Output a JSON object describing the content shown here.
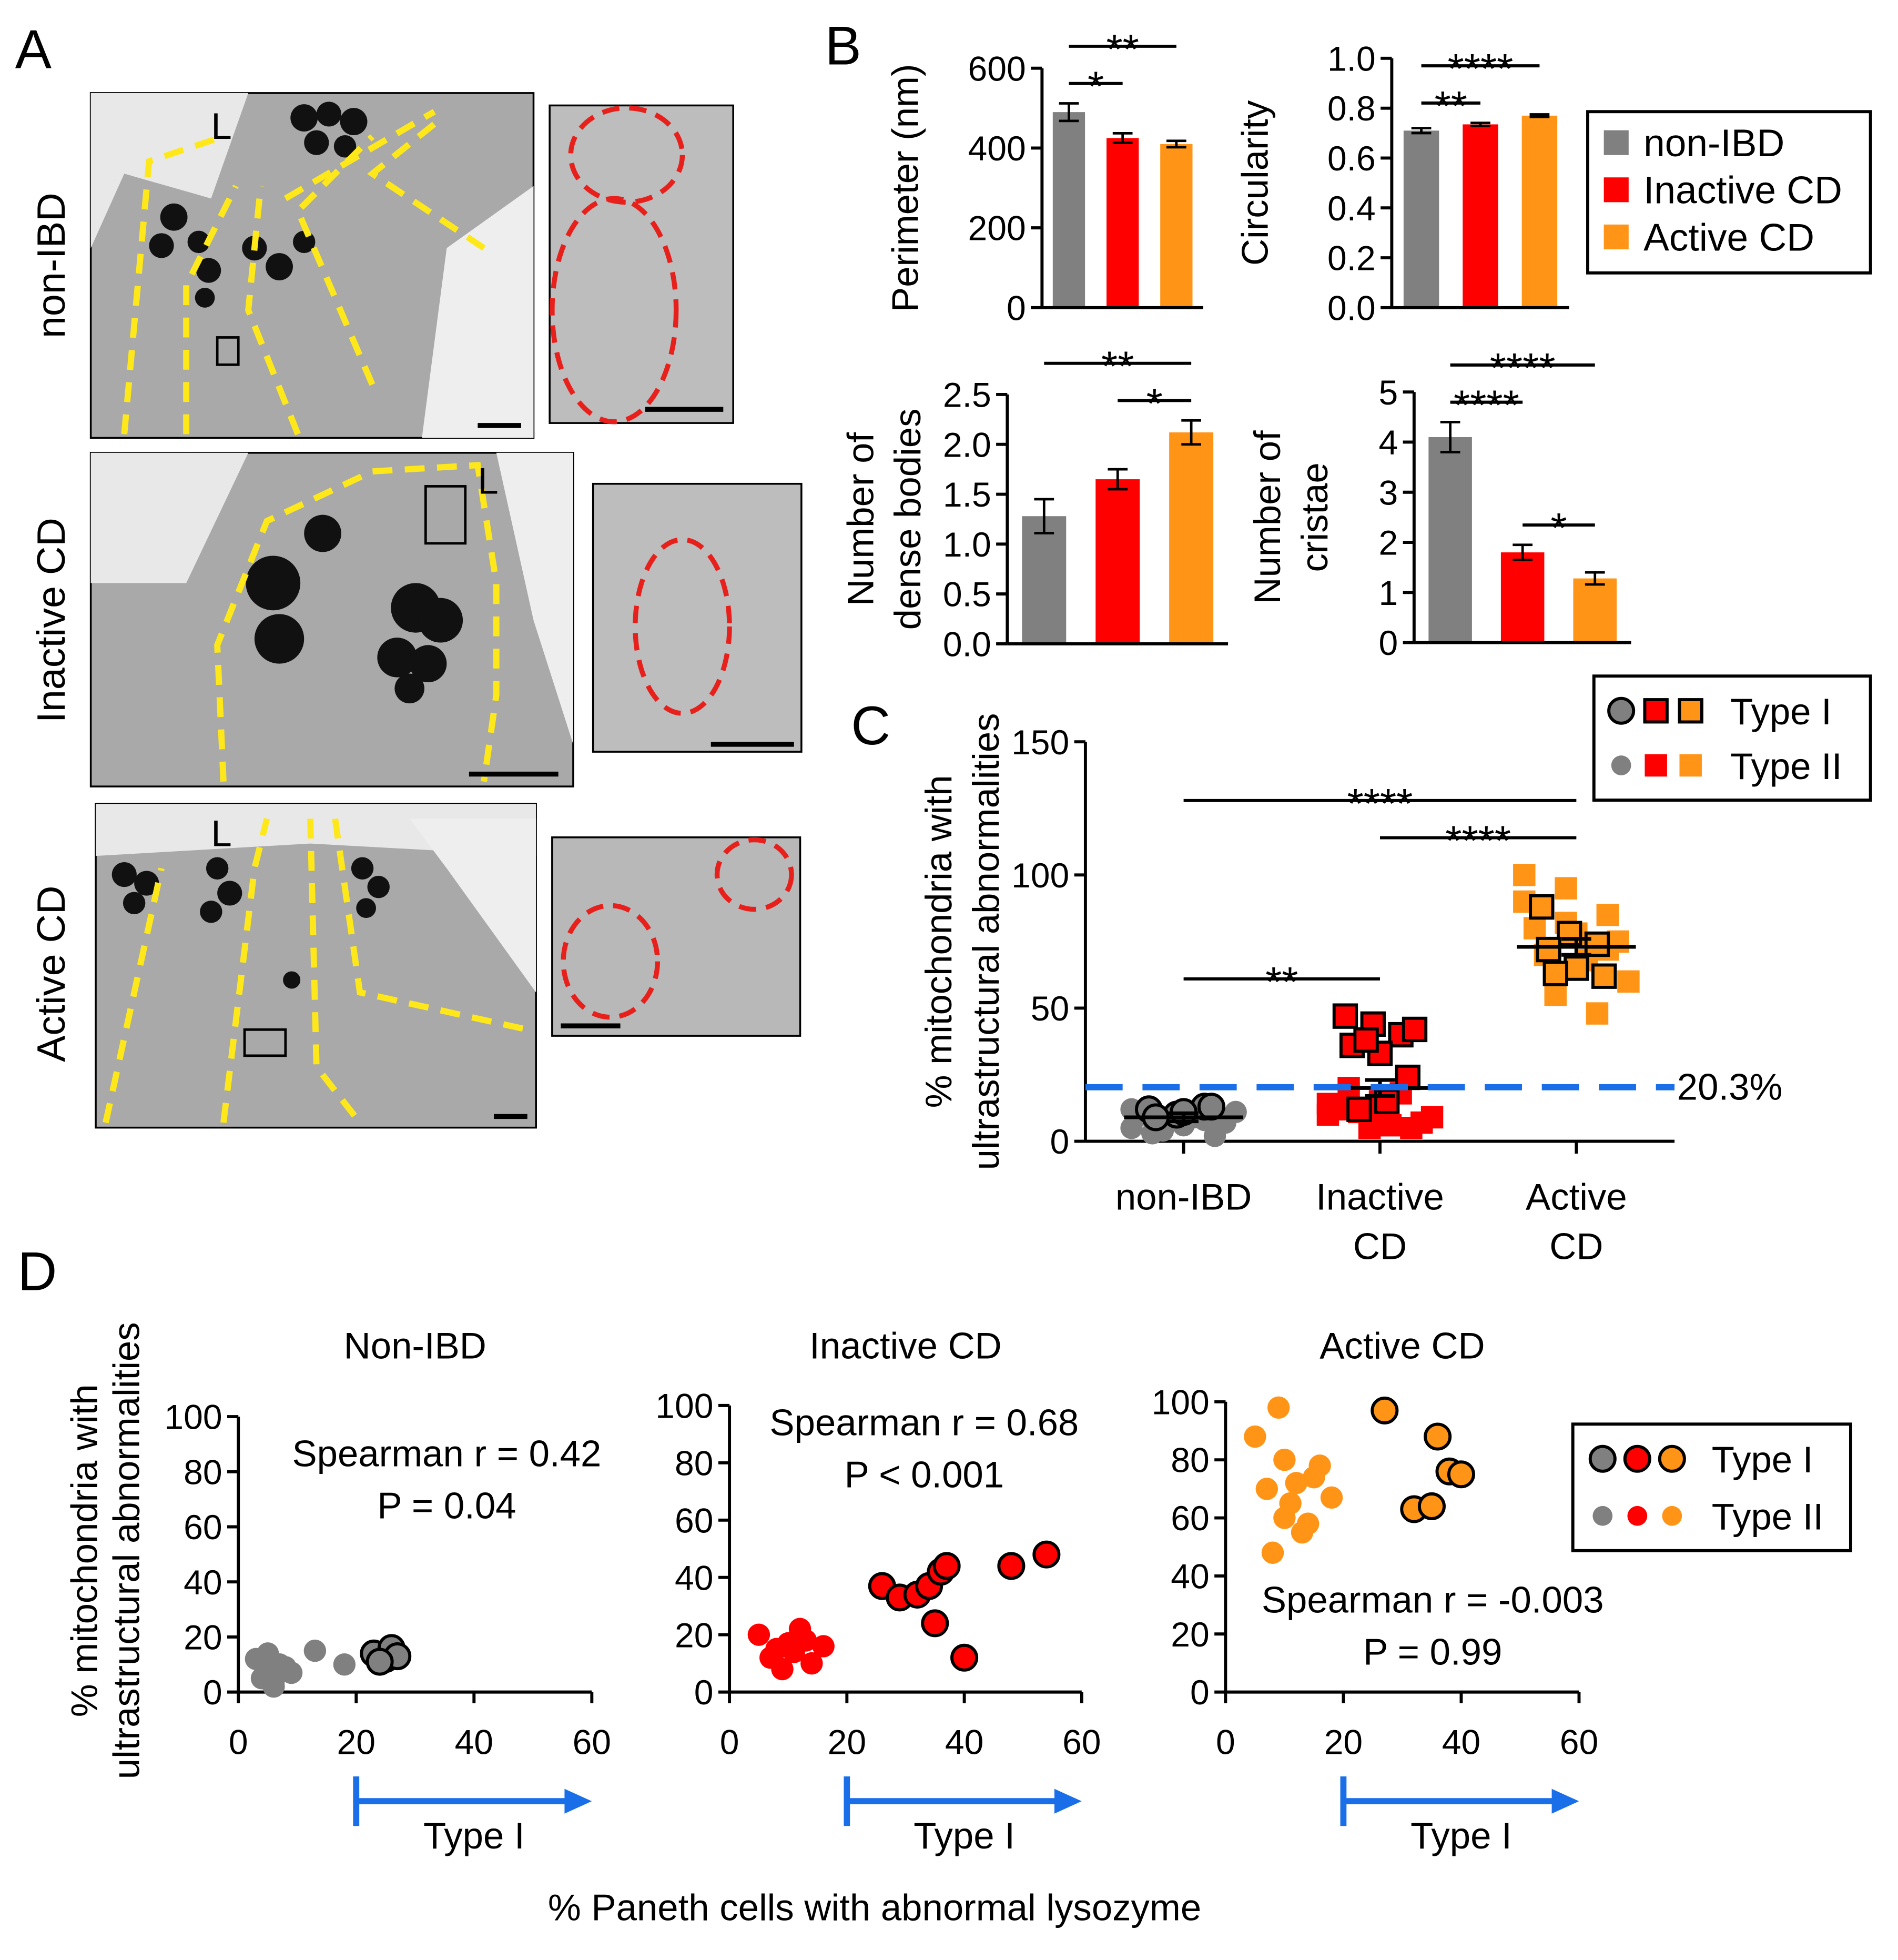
{
  "panel_labels": [
    "A",
    "B",
    "C",
    "D"
  ],
  "panel_a": {
    "rows": [
      "non-IBD",
      "Inactive CD",
      "Active CD"
    ],
    "lumen_label": "L"
  },
  "legend_b": {
    "names": [
      "non-IBD",
      "Inactive CD",
      "Active CD"
    ],
    "colors": [
      "#808080",
      "#ff0000",
      "#ff9416"
    ]
  },
  "legend_d": {
    "names": [
      "Type I",
      "Type II"
    ],
    "colors": [
      "#808080",
      "#ff0000",
      "#ff9416"
    ]
  },
  "x_label_d": "% Paneth cells with abnormal lysozyme",
  "y_label_d": [
    "% mitochondria with",
    "ultrastructural abnormalities"
  ],
  "chart_data": [
    {
      "type": "bar",
      "ylabel": [
        "Perimeter (nm)"
      ],
      "values": [
        490,
        425,
        410
      ],
      "errors": [
        22,
        12,
        8
      ],
      "colors": [
        "#808080",
        "#ff0000",
        "#ff9416"
      ],
      "ylim": [
        0,
        600
      ],
      "yticks": [
        0,
        200,
        400,
        600
      ],
      "annotations": [
        {
          "from": 0,
          "to": 1,
          "label": "*"
        },
        {
          "from": 0,
          "to": 2,
          "label": "**"
        }
      ]
    },
    {
      "type": "bar",
      "ylabel": [
        "Circularity"
      ],
      "values": [
        0.71,
        0.735,
        0.77
      ],
      "errors": [
        0.01,
        0.006,
        0.005
      ],
      "colors": [
        "#808080",
        "#ff0000",
        "#ff9416"
      ],
      "ylim": [
        0,
        1
      ],
      "yticks": [
        {
          "value": 0,
          "label": "0.0"
        },
        {
          "value": 0.2,
          "label": "0.2"
        },
        {
          "value": 0.4,
          "label": "0.4"
        },
        {
          "value": 0.6,
          "label": "0.6"
        },
        {
          "value": 0.8,
          "label": "0.8"
        },
        {
          "value": 1,
          "label": "1.0"
        }
      ],
      "annotations": [
        {
          "from": 0,
          "to": 1,
          "label": "**"
        },
        {
          "from": 0,
          "to": 2,
          "label": "****"
        }
      ]
    },
    {
      "type": "bar",
      "ylabel": [
        "Number of",
        "dense bodies"
      ],
      "values": [
        1.28,
        1.65,
        2.12
      ],
      "errors": [
        0.17,
        0.1,
        0.12
      ],
      "colors": [
        "#808080",
        "#ff0000",
        "#ff9416"
      ],
      "ylim": [
        0,
        2.5
      ],
      "yticks": [
        {
          "value": 0,
          "label": "0.0"
        },
        {
          "value": 0.5,
          "label": "0.5"
        },
        {
          "value": 1,
          "label": "1.0"
        },
        {
          "value": 1.5,
          "label": "1.5"
        },
        {
          "value": 2,
          "label": "2.0"
        },
        {
          "value": 2.5,
          "label": "2.5"
        }
      ],
      "annotations": [
        {
          "from": 1,
          "to": 2,
          "label": "*"
        },
        {
          "from": 0,
          "to": 2,
          "label": "**"
        }
      ]
    },
    {
      "type": "bar",
      "ylabel": [
        "Number of",
        "cristae"
      ],
      "values": [
        4.1,
        1.8,
        1.28
      ],
      "errors": [
        0.3,
        0.15,
        0.12
      ],
      "colors": [
        "#808080",
        "#ff0000",
        "#ff9416"
      ],
      "ylim": [
        0,
        5
      ],
      "yticks": [
        0,
        1,
        2,
        3,
        4,
        5
      ],
      "annotations": [
        {
          "from": 0,
          "to": 1,
          "label": "****"
        },
        {
          "from": 1,
          "to": 2,
          "label": "*"
        },
        {
          "from": 0,
          "to": 2,
          "label": "****"
        }
      ]
    },
    {
      "type": "dot",
      "ylabel": [
        "% mitochondria with",
        "ultrastructural abnormalities"
      ],
      "categories": [
        [
          "non-IBD"
        ],
        [
          "Inactive",
          "CD"
        ],
        [
          "Active",
          "CD"
        ]
      ],
      "colors": [
        "#808080",
        "#ff0000",
        "#ff9416"
      ],
      "markers": [
        "circle",
        "square",
        "square"
      ],
      "series": [
        {
          "name": "Type I",
          "outlined": true,
          "groups": [
            [
              12,
              10,
              13,
              9,
              11,
              13
            ],
            [
              47,
              44,
              40,
              36,
              33,
              24,
              12,
              15,
              42,
              38
            ],
            [
              88,
              78,
              74,
              72,
              65,
              62,
              63
            ]
          ]
        },
        {
          "name": "Type II",
          "outlined": false,
          "groups": [
            [
              5,
              8,
              2,
              10,
              6,
              7,
              3,
              9,
              11,
              4,
              8,
              12
            ],
            [
              10,
              8,
              5,
              12,
              15,
              7,
              20,
              6,
              9,
              11,
              18,
              14,
              5
            ],
            [
              100,
              95,
              85,
              80,
              78,
              75,
              70,
              68,
              60,
              55,
              48,
              90,
              82,
              72
            ]
          ]
        }
      ],
      "means": [
        9,
        20,
        73
      ],
      "mean_errors": [
        1.5,
        3,
        3
      ],
      "threshold": 20.3,
      "threshold_label": "20.3%",
      "ylim": [
        0,
        150
      ],
      "yticks": [
        0,
        50,
        100,
        150
      ],
      "annotations": [
        {
          "from": 0,
          "to": 1,
          "label": "**"
        },
        {
          "from": 1,
          "to": 2,
          "label": "****"
        },
        {
          "from": 0,
          "to": 2,
          "label": "****"
        }
      ]
    },
    {
      "type": "scatter",
      "title": "Non-IBD",
      "stat_lines": [
        "Spearman r = 0.42",
        "P = 0.04"
      ],
      "color": "#808080",
      "series": [
        {
          "outlined": true,
          "x": [
            23,
            25,
            26,
            27,
            24
          ],
          "values": [
            14,
            12,
            16,
            13,
            11
          ]
        },
        {
          "outlined": false,
          "x": [
            3,
            4,
            5,
            6,
            7,
            8,
            9,
            13,
            18,
            5,
            6
          ],
          "values": [
            12,
            5,
            8,
            2,
            10,
            9,
            7,
            15,
            10,
            14,
            4
          ]
        }
      ],
      "threshold_x": 20,
      "arrow_label": "Type I",
      "xlim": [
        0,
        60
      ],
      "xticks": [
        0,
        20,
        40,
        60
      ],
      "ylim": [
        0,
        100
      ],
      "yticks": [
        0,
        20,
        40,
        60,
        80,
        100
      ]
    },
    {
      "type": "scatter",
      "title": "Inactive CD",
      "stat_lines": [
        "Spearman r = 0.68",
        "P < 0.001"
      ],
      "color": "#ff0000",
      "series": [
        {
          "outlined": true,
          "x": [
            26,
            29,
            32,
            34,
            35,
            36,
            37,
            40,
            48,
            54
          ],
          "values": [
            37,
            33,
            34,
            37,
            24,
            42,
            44,
            12,
            44,
            48
          ]
        },
        {
          "outlined": false,
          "x": [
            5,
            7,
            9,
            10,
            12,
            14,
            16,
            8,
            11,
            13
          ],
          "values": [
            20,
            12,
            8,
            17,
            22,
            10,
            16,
            15,
            14,
            18
          ]
        }
      ],
      "threshold_x": 20,
      "arrow_label": "Type I",
      "xlim": [
        0,
        60
      ],
      "xticks": [
        0,
        20,
        40,
        60
      ],
      "ylim": [
        0,
        100
      ],
      "yticks": [
        0,
        20,
        40,
        60,
        80,
        100
      ]
    },
    {
      "type": "scatter",
      "title": "Active CD",
      "stat_lines": [
        "Spearman r = -0.003",
        "P = 0.99"
      ],
      "color": "#ff9416",
      "series": [
        {
          "outlined": true,
          "x": [
            27,
            32,
            35,
            36,
            38,
            40
          ],
          "values": [
            97,
            63,
            64,
            88,
            76,
            75
          ]
        },
        {
          "outlined": false,
          "x": [
            5,
            7,
            9,
            10,
            11,
            12,
            13,
            14,
            16,
            18,
            8,
            10,
            15
          ],
          "values": [
            88,
            70,
            98,
            80,
            65,
            72,
            55,
            58,
            78,
            67,
            48,
            60,
            74
          ]
        }
      ],
      "threshold_x": 20,
      "arrow_label": "Type I",
      "xlim": [
        0,
        60
      ],
      "xticks": [
        0,
        20,
        40,
        60
      ],
      "ylim": [
        0,
        100
      ],
      "yticks": [
        0,
        20,
        40,
        60,
        80,
        100
      ]
    }
  ]
}
